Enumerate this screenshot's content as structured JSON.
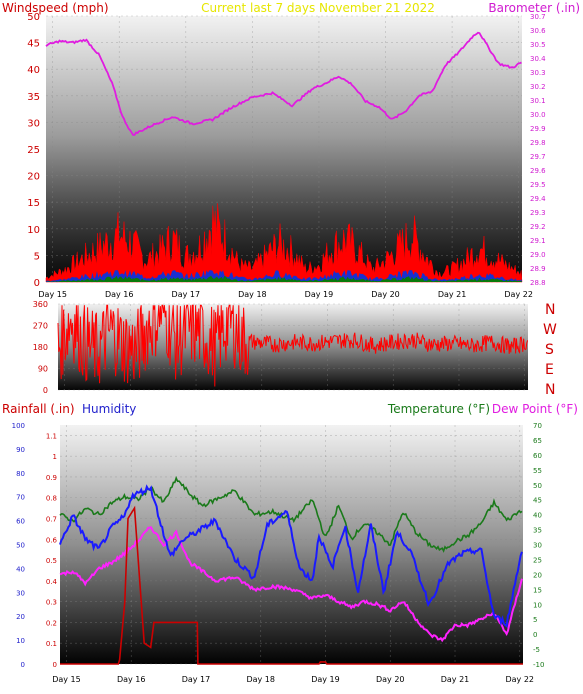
{
  "header": {
    "windspeed_label": "Windspeed (mph)",
    "current_label": "Current last 7 days November 21 2022",
    "barometer_label": "Barometer (.in)"
  },
  "lower_header": {
    "rainfall_label": "Rainfall (.in)",
    "humidity_label": "Humidity",
    "temperature_label": "Temperature (°F)",
    "dewpoint_label": "Dew Point (°F)"
  },
  "compass_letters": [
    "N",
    "W",
    "S",
    "E",
    "N"
  ],
  "day_labels": [
    "Day 15",
    "Day 16",
    "Day 17",
    "Day 18",
    "Day 19",
    "Day 20",
    "Day 21",
    "Day 22"
  ],
  "colors": {
    "windspeed": "#ff0000",
    "windspeed_low": "#1a2fd0",
    "windspeed_calm": "#0a7a0a",
    "barometer": "#e01ce0",
    "direction": "#ff0000",
    "rainfall": "#cc0000",
    "humidity": "#1a1aff",
    "temperature": "#1a7a1a",
    "dewpoint": "#ff22ff",
    "current": "#e6e600"
  },
  "chart_data": [
    {
      "type": "area",
      "xlabel": "",
      "x_ticks": [
        "Day 15",
        "Day 16",
        "Day 17",
        "Day 18",
        "Day 19",
        "Day 20",
        "Day 21",
        "Day 22"
      ],
      "y_left_label": "Windspeed (mph)",
      "y_left_ticks": [
        0,
        5,
        10,
        15,
        20,
        25,
        30,
        35,
        40,
        45,
        50
      ],
      "ylim_left": [
        0,
        50
      ],
      "y_right_label": "Barometer (.in)",
      "y_right_ticks": [
        28.8,
        28.9,
        29.0,
        29.1,
        29.2,
        29.3,
        29.4,
        29.5,
        29.6,
        29.7,
        29.8,
        29.9,
        30.0,
        30.1,
        30.2,
        30.3,
        30.4,
        30.5,
        30.6,
        30.7
      ],
      "ylim_right": [
        28.8,
        30.7
      ],
      "x_range_days": [
        14.9,
        22.05
      ],
      "series": [
        {
          "name": "Windspeed (mph)",
          "x": [
            14.9,
            15.2,
            15.5,
            15.8,
            16.0,
            16.2,
            16.4,
            16.6,
            16.8,
            17.0,
            17.2,
            17.4,
            17.6,
            17.8,
            18.0,
            18.2,
            18.4,
            18.6,
            18.8,
            19.0,
            19.2,
            19.4,
            19.6,
            19.8,
            20.0,
            20.2,
            20.4,
            20.6,
            20.8,
            21.0,
            21.2,
            21.4,
            21.6,
            21.8,
            22.05
          ],
          "values": [
            1,
            3,
            6,
            9,
            11,
            9,
            5,
            7,
            10,
            6,
            8,
            14,
            10,
            4,
            3,
            6,
            9,
            7,
            3,
            4,
            8,
            10,
            7,
            3,
            5,
            8,
            11,
            6,
            2,
            3,
            5,
            8,
            6,
            4,
            2
          ]
        },
        {
          "name": "Barometer (.in)",
          "x": [
            14.9,
            15.1,
            15.3,
            15.5,
            15.7,
            15.9,
            16.05,
            16.2,
            16.5,
            16.8,
            17.1,
            17.4,
            17.7,
            18.0,
            18.3,
            18.6,
            18.9,
            19.1,
            19.3,
            19.5,
            19.7,
            19.9,
            20.1,
            20.3,
            20.5,
            20.7,
            20.9,
            21.1,
            21.3,
            21.4,
            21.5,
            21.7,
            21.9,
            22.05
          ],
          "values": [
            30.49,
            30.52,
            30.51,
            30.53,
            30.42,
            30.21,
            29.98,
            29.85,
            29.92,
            29.98,
            29.93,
            29.96,
            30.05,
            30.12,
            30.15,
            30.06,
            30.18,
            30.22,
            30.27,
            30.21,
            30.09,
            30.05,
            29.96,
            30.02,
            30.13,
            30.16,
            30.35,
            30.44,
            30.55,
            30.59,
            30.51,
            30.36,
            30.33,
            30.37
          ]
        }
      ]
    },
    {
      "type": "line",
      "y_ticks": [
        0,
        90,
        180,
        270,
        360
      ],
      "ylim": [
        0,
        360
      ],
      "right_labels": [
        "N",
        "W",
        "S",
        "E",
        "N"
      ],
      "x_ticks": [],
      "x_range_days": [
        14.9,
        22.05
      ],
      "series": [
        {
          "name": "Wind direction",
          "x": [
            14.9,
            15.1,
            15.3,
            15.5,
            15.7,
            15.9,
            16.1,
            16.3,
            16.5,
            16.7,
            16.9,
            17.1,
            17.3,
            17.5,
            17.7,
            17.9,
            18.2,
            18.5,
            18.8,
            19.1,
            19.4,
            19.7,
            20.0,
            20.3,
            20.6,
            20.9,
            21.2,
            21.5,
            21.8,
            22.05
          ],
          "values": [
            180,
            300,
            200,
            160,
            250,
            190,
            170,
            280,
            330,
            200,
            260,
            240,
            180,
            300,
            210,
            200,
            190,
            200,
            195,
            205,
            210,
            185,
            200,
            210,
            190,
            195,
            185,
            200,
            180,
            200
          ]
        }
      ]
    },
    {
      "type": "line",
      "x_ticks": [
        "Day 15",
        "Day 16",
        "Day 17",
        "Day 18",
        "Day 19",
        "Day 20",
        "Day 21",
        "Day 22"
      ],
      "x_range_days": [
        14.9,
        22.05
      ],
      "y_left_ticks_humidity": [
        0,
        10,
        20,
        30,
        40,
        50,
        60,
        70,
        80,
        90,
        100
      ],
      "ylim_humidity": [
        0,
        100
      ],
      "y_left_ticks_rain": [
        0,
        0.1,
        0.2,
        0.3,
        0.4,
        0.5,
        0.6,
        0.7,
        0.8,
        0.9,
        1,
        1.1
      ],
      "ylim_rain": [
        0,
        1.15
      ],
      "y_right_ticks": [
        -10,
        -5,
        0,
        5,
        10,
        15,
        20,
        25,
        30,
        35,
        40,
        45,
        50,
        55,
        60,
        65,
        70
      ],
      "ylim_right": [
        -10,
        70
      ],
      "series": [
        {
          "name": "Rainfall (.in)",
          "x": [
            14.9,
            15.8,
            15.82,
            15.9,
            15.95,
            16.05,
            16.2,
            16.3,
            16.35,
            16.5,
            17.02,
            17.03,
            18.9,
            18.92,
            19.0,
            19.02,
            22.05
          ],
          "values": [
            0,
            0,
            0.02,
            0.3,
            0.7,
            0.75,
            0.1,
            0.08,
            0.2,
            0.2,
            0.2,
            0,
            0,
            0.01,
            0.01,
            0,
            0
          ]
        },
        {
          "name": "Humidity",
          "x": [
            14.9,
            15.1,
            15.3,
            15.5,
            15.7,
            15.9,
            16.0,
            16.3,
            16.6,
            16.8,
            17.0,
            17.3,
            17.6,
            17.9,
            18.1,
            18.4,
            18.6,
            18.8,
            18.9,
            19.1,
            19.3,
            19.5,
            19.7,
            19.9,
            20.1,
            20.3,
            20.6,
            20.9,
            21.1,
            21.4,
            21.6,
            21.8,
            22.05
          ],
          "values": [
            50,
            62,
            52,
            48,
            57,
            62,
            70,
            74,
            45,
            52,
            55,
            60,
            44,
            36,
            58,
            64,
            40,
            35,
            54,
            40,
            58,
            30,
            58,
            30,
            55,
            48,
            25,
            42,
            46,
            48,
            20,
            17,
            50
          ]
        },
        {
          "name": "Temperature (°F)",
          "x": [
            14.9,
            15.1,
            15.3,
            15.5,
            15.7,
            15.9,
            16.1,
            16.3,
            16.5,
            16.7,
            16.9,
            17.1,
            17.3,
            17.6,
            17.9,
            18.2,
            18.5,
            18.8,
            19.0,
            19.2,
            19.4,
            19.6,
            19.8,
            20.0,
            20.2,
            20.4,
            20.6,
            20.8,
            21.0,
            21.2,
            21.4,
            21.6,
            21.8,
            22.05
          ],
          "values": [
            40,
            38,
            42,
            40,
            44,
            46,
            45,
            49,
            44,
            52,
            47,
            43,
            45,
            48,
            40,
            41,
            38,
            45,
            32,
            43,
            32,
            37,
            34,
            30,
            41,
            34,
            30,
            28,
            31,
            33,
            37,
            44,
            38,
            42
          ]
        },
        {
          "name": "Dew Point (°F)",
          "x": [
            14.9,
            15.1,
            15.3,
            15.5,
            15.7,
            15.9,
            16.1,
            16.3,
            16.5,
            16.7,
            16.9,
            17.1,
            17.3,
            17.6,
            17.9,
            18.2,
            18.5,
            18.8,
            19.0,
            19.2,
            19.4,
            19.6,
            19.8,
            20.0,
            20.2,
            20.4,
            20.6,
            20.8,
            21.0,
            21.2,
            21.4,
            21.6,
            21.8,
            22.05
          ],
          "values": [
            20,
            21,
            17,
            22,
            24,
            27,
            31,
            36,
            30,
            34,
            24,
            21,
            18,
            19,
            15,
            16,
            15,
            12,
            13,
            11,
            9,
            11,
            10,
            8,
            11,
            5,
            0,
            -2,
            3,
            3,
            5,
            7,
            0,
            20
          ]
        }
      ]
    }
  ]
}
